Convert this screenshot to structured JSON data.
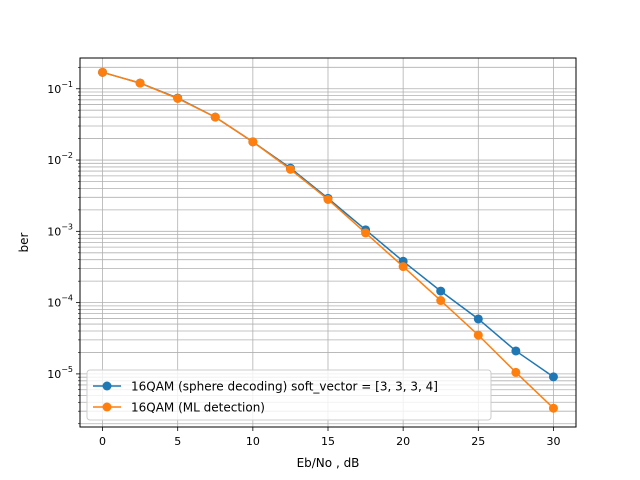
{
  "chart_data": {
    "type": "line",
    "title": "",
    "xlabel": "Eb/No , dB",
    "ylabel": "ber",
    "y_scale": "log",
    "xlim": [
      -1.5,
      31.5
    ],
    "ylim": [
      1.8e-06,
      0.27
    ],
    "grid": "on (major and minor)",
    "legend_position": "lower-left",
    "x_ticks": [
      0,
      5,
      10,
      15,
      20,
      25,
      30
    ],
    "x_tick_labels": [
      "0",
      "5",
      "10",
      "15",
      "20",
      "25",
      "30"
    ],
    "y_ticks": [
      1e-05,
      0.0001,
      0.001,
      0.01,
      0.1
    ],
    "y_tick_labels": [
      {
        "base": "10",
        "exp": "−5"
      },
      {
        "base": "10",
        "exp": "−4"
      },
      {
        "base": "10",
        "exp": "−3"
      },
      {
        "base": "10",
        "exp": "−2"
      },
      {
        "base": "10",
        "exp": "−1"
      }
    ],
    "x": [
      0,
      2.5,
      5,
      7.5,
      10,
      12.5,
      15,
      17.5,
      20,
      22.5,
      25,
      27.5,
      30
    ],
    "series": [
      {
        "name": "16QAM (sphere decoding) soft_vector = [3, 3, 3, 4]",
        "color": "#1f77b4",
        "marker": "circle",
        "values": [
          0.17,
          0.12,
          0.074,
          0.04,
          0.018,
          0.0077,
          0.0029,
          0.00105,
          0.00038,
          0.000145,
          5.9e-05,
          2.1e-05,
          9.1e-06
        ]
      },
      {
        "name": "16QAM (ML detection)",
        "color": "#ff7f0e",
        "marker": "circle",
        "values": [
          0.17,
          0.12,
          0.073,
          0.04,
          0.018,
          0.0074,
          0.0028,
          0.00095,
          0.00032,
          0.000107,
          3.5e-05,
          1.05e-05,
          3.3e-06
        ]
      }
    ]
  }
}
